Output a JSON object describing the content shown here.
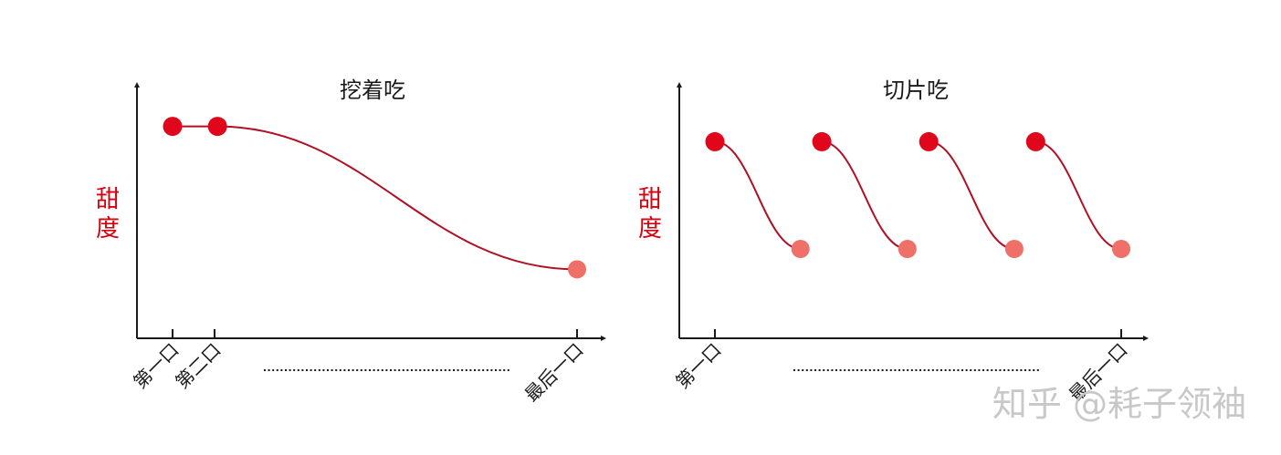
{
  "colors": {
    "axis": "#1a1a1a",
    "curve": "#b01024",
    "dot_first": "#e0061b",
    "dot_last": "#ee7068",
    "ylabel": "#d7000f",
    "watermark": "#c8c8c8"
  },
  "watermark": "知乎 @耗子领袖",
  "chart_data": [
    {
      "type": "line",
      "title": "挖着吃",
      "ylabel": "甜度",
      "ylabel_chars": [
        "甜",
        "度"
      ],
      "x_tick_labels": [
        "第一口",
        "第二口",
        "最后一口"
      ],
      "x_ellipsis": true,
      "ylim": [
        0,
        1
      ],
      "series": [
        {
          "x": [
            1,
            2,
            10
          ],
          "values": [
            0.83,
            0.83,
            0.27
          ]
        }
      ],
      "markers": [
        {
          "x": 1,
          "y": 0.83,
          "style": "first"
        },
        {
          "x": 2,
          "y": 0.83,
          "style": "first"
        },
        {
          "x": 10,
          "y": 0.27,
          "style": "last"
        }
      ]
    },
    {
      "type": "line",
      "title": "切片吃",
      "ylabel": "甜度",
      "ylabel_chars": [
        "甜",
        "度"
      ],
      "x_tick_labels": [
        "第一口",
        "最后一口"
      ],
      "x_ellipsis": true,
      "ylim": [
        0,
        1
      ],
      "series": [
        {
          "x": [
            1,
            3
          ],
          "values": [
            0.77,
            0.35
          ]
        },
        {
          "x": [
            3.5,
            5.5
          ],
          "values": [
            0.77,
            0.35
          ]
        },
        {
          "x": [
            6,
            8
          ],
          "values": [
            0.77,
            0.35
          ]
        },
        {
          "x": [
            8.5,
            10.5
          ],
          "values": [
            0.77,
            0.35
          ]
        }
      ],
      "markers": [
        {
          "x": 1,
          "y": 0.77,
          "style": "first"
        },
        {
          "x": 3,
          "y": 0.35,
          "style": "last"
        },
        {
          "x": 3.5,
          "y": 0.77,
          "style": "first"
        },
        {
          "x": 5.5,
          "y": 0.35,
          "style": "last"
        },
        {
          "x": 6,
          "y": 0.77,
          "style": "first"
        },
        {
          "x": 8,
          "y": 0.35,
          "style": "last"
        },
        {
          "x": 8.5,
          "y": 0.77,
          "style": "first"
        },
        {
          "x": 10.5,
          "y": 0.35,
          "style": "last"
        }
      ]
    }
  ]
}
